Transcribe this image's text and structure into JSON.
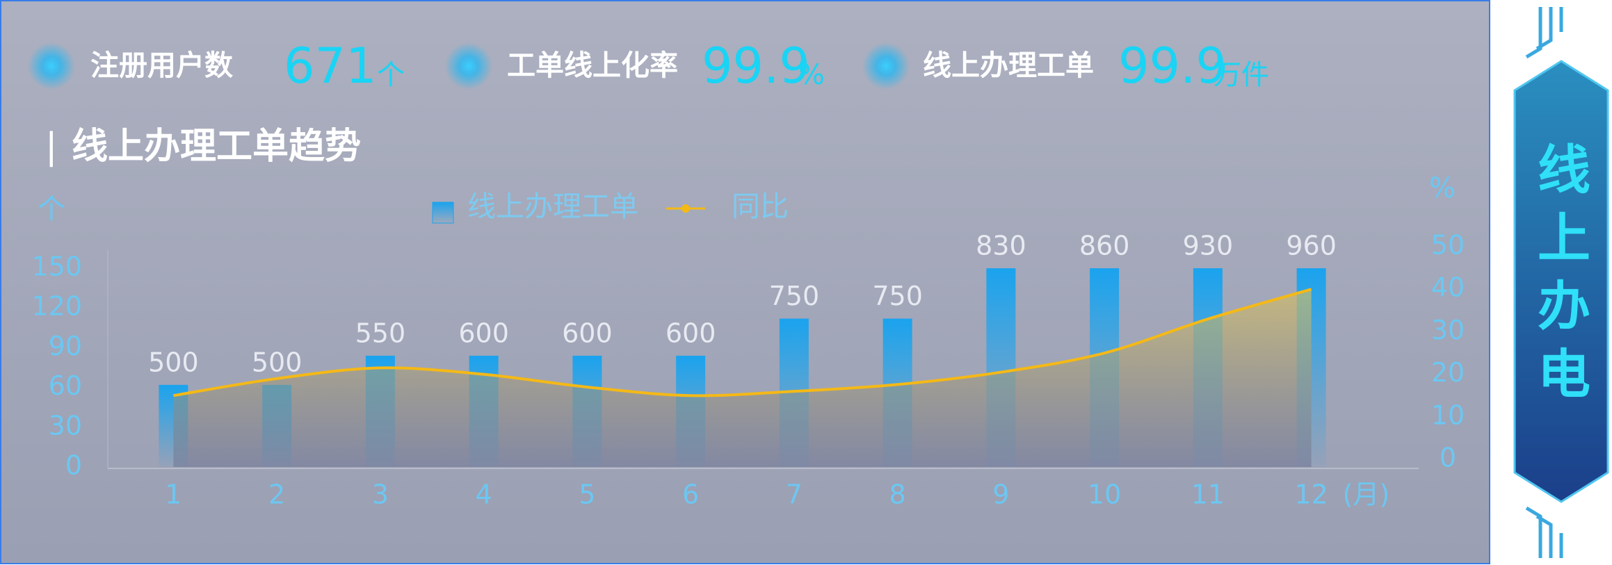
{
  "kpis": [
    {
      "label": "注册用户数",
      "value": 671,
      "unit": "个"
    },
    {
      "label": "工单线上化率",
      "value": 99.9,
      "unit": "%"
    },
    {
      "label": "线上办理工单",
      "value": 99.9,
      "unit": "万件"
    }
  ],
  "side_label": "线上办电",
  "chart_data": {
    "type": "bar",
    "title": "线上办理工单趋势",
    "y_unit": "个",
    "y2_unit": "%",
    "x_unit": "(月)",
    "categories": [
      "1",
      "2",
      "3",
      "4",
      "5",
      "6",
      "7",
      "8",
      "9",
      "10",
      "11",
      "12"
    ],
    "series": [
      {
        "name": "线上办理工单",
        "type": "bar",
        "color": "#1aa3ee",
        "values": [
          62,
          62,
          84,
          84,
          84,
          84,
          112,
          112,
          150,
          150,
          150,
          150
        ]
      },
      {
        "name": "同比",
        "type": "line",
        "axis": "y2",
        "color": "#f5b916",
        "values": [
          15,
          19,
          21.5,
          20,
          17,
          15,
          16,
          17.6,
          20.5,
          25,
          33,
          40
        ]
      }
    ],
    "annotations": [
      "500",
      "500",
      "550",
      "600",
      "600",
      "600",
      "750",
      "750",
      "830",
      "860",
      "930",
      "960"
    ],
    "ylim": [
      0,
      150
    ],
    "yticks": [
      0,
      30,
      60,
      90,
      120,
      150
    ],
    "y2lim": [
      0,
      50
    ],
    "y2ticks": [
      0,
      10,
      20,
      30,
      40,
      50
    ],
    "grid": false,
    "legend": "top"
  }
}
